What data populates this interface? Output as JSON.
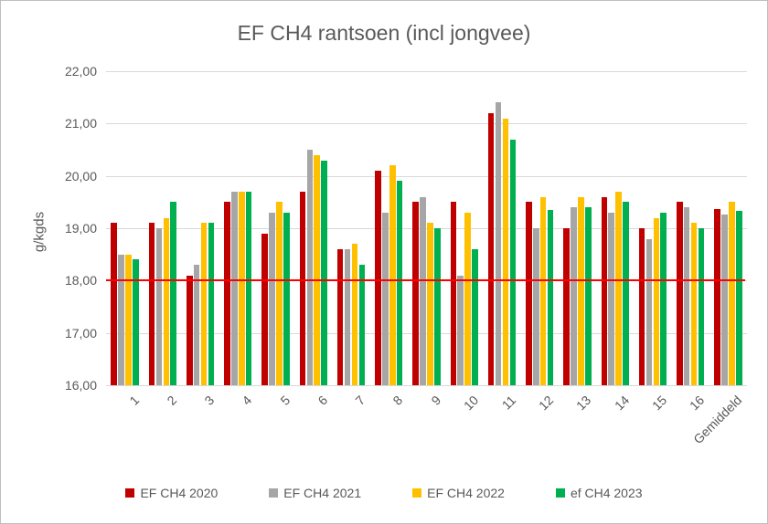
{
  "chart_data": {
    "type": "bar",
    "title": "EF CH4 rantsoen (incl jongvee)",
    "xlabel": "",
    "ylabel": "g/kgds",
    "ylim": [
      16,
      22
    ],
    "ytick_step": 1,
    "ytick_labels_top_to_bottom": [
      "22,00",
      "21,00",
      "20,00",
      "19,00",
      "18,00",
      "17,00",
      "16,00"
    ],
    "grid": true,
    "legend_position": "bottom",
    "categories": [
      "1",
      "2",
      "3",
      "4",
      "5",
      "6",
      "7",
      "8",
      "9",
      "10",
      "11",
      "12",
      "13",
      "14",
      "15",
      "16",
      "Gemiddeld"
    ],
    "series": [
      {
        "name": "EF CH4 2020",
        "color": "#c00000",
        "values": [
          19.1,
          19.1,
          18.1,
          19.5,
          18.9,
          19.7,
          18.6,
          20.1,
          19.5,
          19.5,
          21.2,
          19.5,
          19.0,
          19.6,
          19.0,
          19.5,
          19.37
        ]
      },
      {
        "name": "EF CH4 2021",
        "color": "#a6a6a6",
        "values": [
          18.5,
          19.0,
          18.3,
          19.7,
          19.3,
          20.5,
          18.6,
          19.3,
          19.6,
          18.1,
          21.4,
          19.0,
          19.4,
          19.3,
          18.8,
          19.4,
          19.26
        ]
      },
      {
        "name": "EF CH4 2022",
        "color": "#ffc000",
        "values": [
          18.5,
          19.2,
          19.1,
          19.7,
          19.5,
          20.4,
          18.7,
          20.2,
          19.1,
          19.3,
          21.1,
          19.6,
          19.6,
          19.7,
          19.2,
          19.1,
          19.5
        ]
      },
      {
        "name": "ef CH4 2023",
        "color": "#00b050",
        "values": [
          18.4,
          19.5,
          19.1,
          19.7,
          19.3,
          20.3,
          18.3,
          19.9,
          19.0,
          18.6,
          20.7,
          19.35,
          19.4,
          19.5,
          19.3,
          19.0,
          19.33
        ]
      }
    ],
    "reference_line": {
      "value": 18.0,
      "color": "#ff0000"
    },
    "colors": {
      "text": "#595959",
      "gridline": "#d9d9d9",
      "background": "#ffffff"
    }
  }
}
